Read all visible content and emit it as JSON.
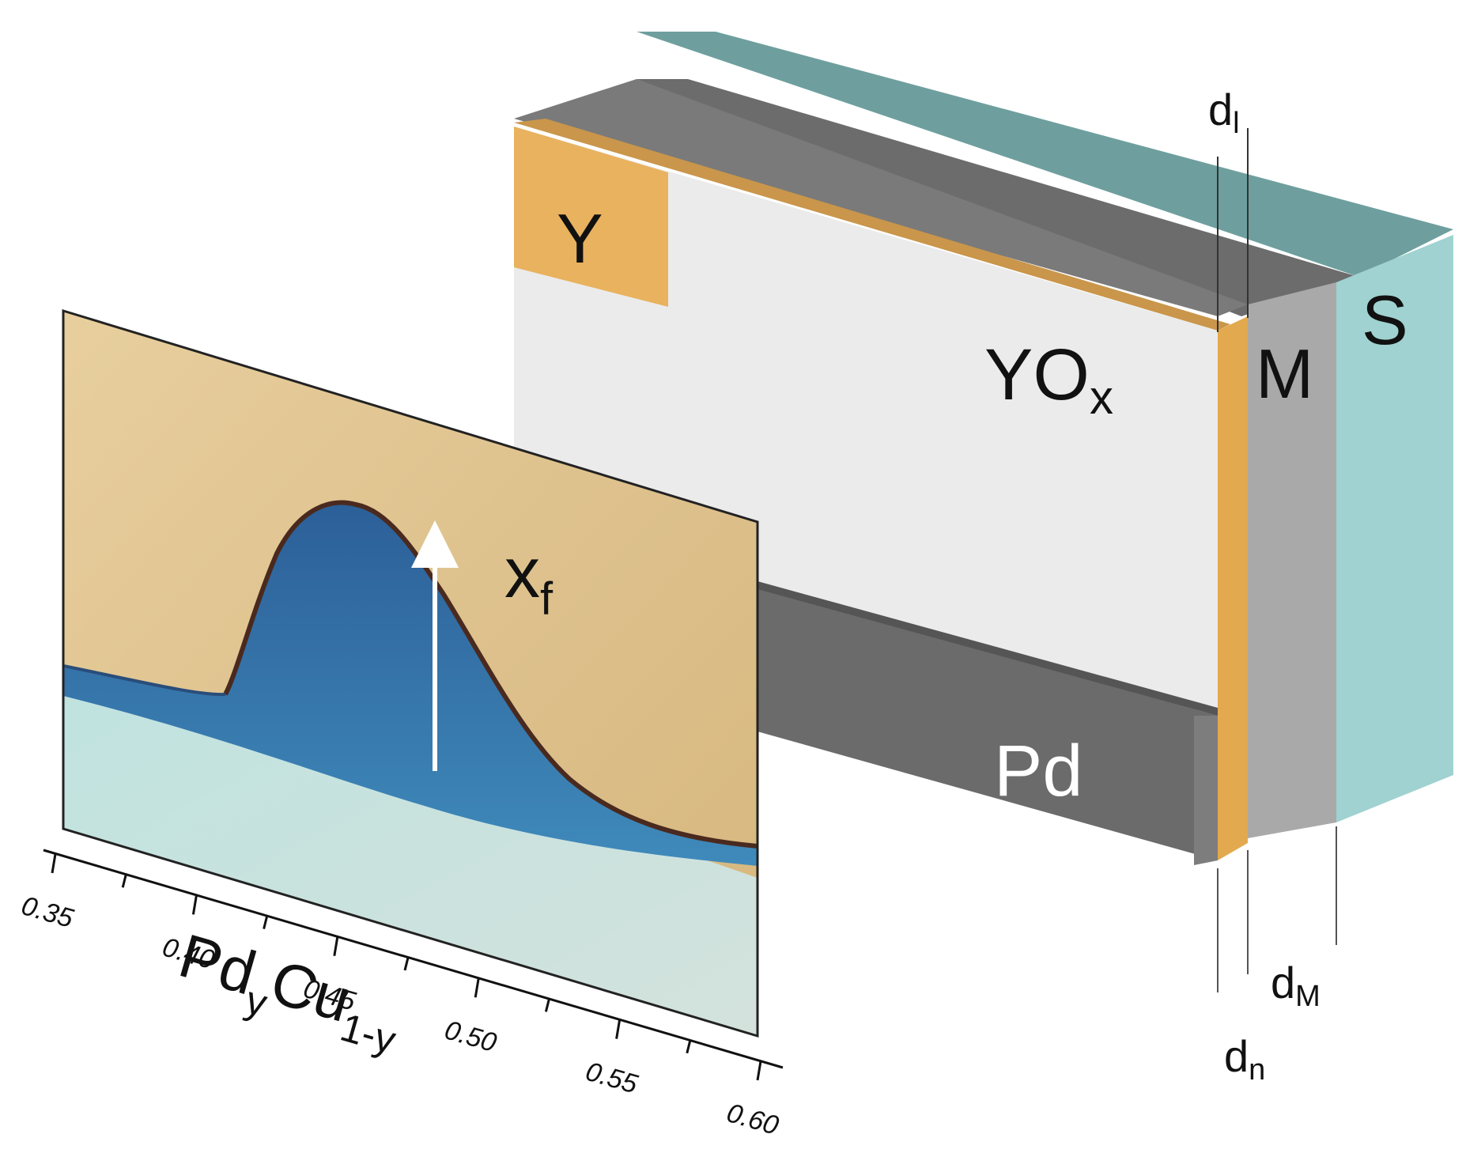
{
  "stack": {
    "label_y": "Y",
    "label_yox": "YO",
    "label_yox_sub": "x",
    "label_pd": "Pd",
    "label_m": "M",
    "label_s": "S"
  },
  "thickness": {
    "dl_main": "d",
    "dl_sub": "l",
    "dn_main": "d",
    "dn_sub": "n",
    "dm_main": "d",
    "dm_sub": "M"
  },
  "photo": {
    "front_label_main": "x",
    "front_label_sub": "f",
    "axis_ticks": [
      "0.35",
      "0.40",
      "0.45",
      "0.50",
      "0.55",
      "0.60"
    ],
    "axis_title_pd": "Pd",
    "axis_title_y": "y",
    "axis_title_cu": "Cu",
    "axis_title_sub": "1-y"
  },
  "colors": {
    "yttrium": "#e9b25e",
    "yttrium_oxide": "#ebebeb",
    "palladium": "#6b6b6b",
    "metal_layer": "#a9a9a9",
    "substrate": "#9fd2d0",
    "photo_gold": "#dcc08e",
    "photo_blue": "#2e6fa3",
    "photo_pale": "#c9dcd8"
  }
}
